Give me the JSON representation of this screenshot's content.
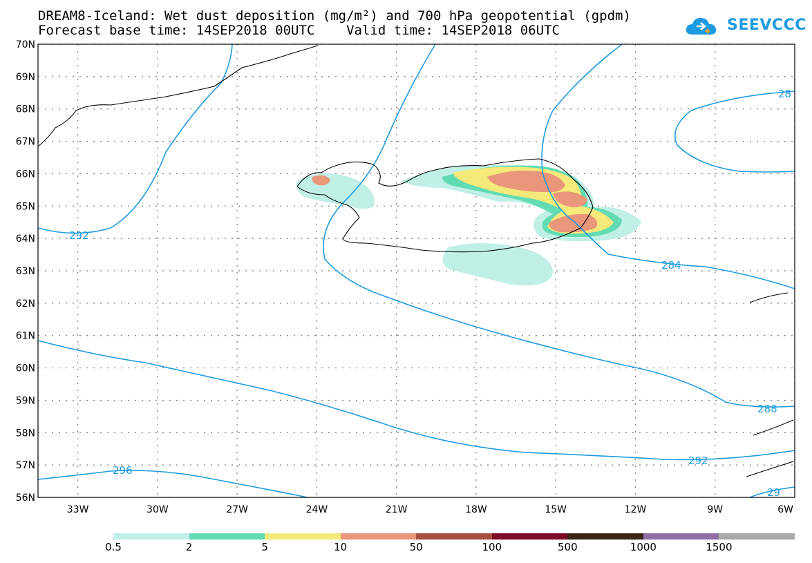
{
  "title_line1": "DREAM8-Iceland: Wet dust deposition (mg/m²) and 700 hPa geopotential (gpdm)",
  "title_line2": "Forecast base time: 14SEP2018 00UTC    Valid time: 14SEP2018 06UTC",
  "logo": {
    "text": "SEEVCCC",
    "icon": "cloud-icon",
    "color": "#1e9be0"
  },
  "map": {
    "lon_range": [
      -34.5,
      -6
    ],
    "lat_range": [
      56,
      70
    ],
    "lat_labels": [
      "70N",
      "69N",
      "68N",
      "67N",
      "66N",
      "65N",
      "64N",
      "63N",
      "62N",
      "61N",
      "60N",
      "59N",
      "58N",
      "57N",
      "56N"
    ],
    "lon_labels": [
      "33W",
      "30W",
      "27W",
      "24W",
      "21W",
      "18W",
      "15W",
      "12W",
      "9W",
      "6W"
    ],
    "contour_labels": [
      "292",
      "284",
      "28",
      "288",
      "292",
      "296",
      "29"
    ],
    "contour_color": "#1e9be0"
  },
  "legend": {
    "labels": [
      "0.5",
      "2",
      "5",
      "10",
      "50",
      "100",
      "500",
      "1000",
      "1500"
    ],
    "colors": [
      "#c0efe6",
      "#62dbb2",
      "#f5e97a",
      "#e9967a",
      "#a84f40",
      "#7d0a26",
      "#3d2418",
      "#8e6fa4",
      "#a8a8a8"
    ]
  }
}
